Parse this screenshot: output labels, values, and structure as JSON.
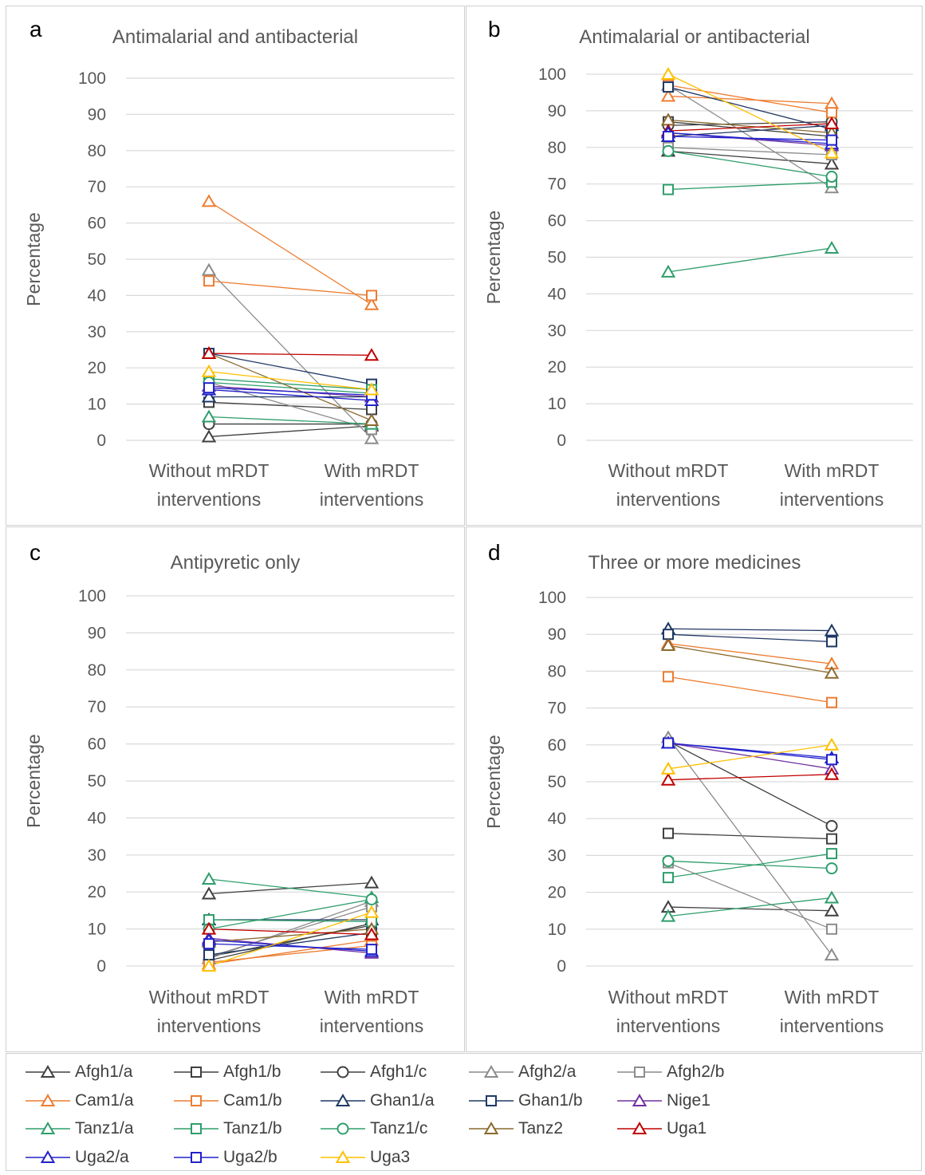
{
  "panels": [
    {
      "letter": "a",
      "title": "Antimalarial and antibacterial",
      "ylabel": "Percentage",
      "categories": [
        "Without mRDT\ninterventions",
        "With mRDT\ninterventions"
      ]
    },
    {
      "letter": "b",
      "title": "Antimalarial or antibacterial",
      "ylabel": "Percentage",
      "categories": [
        "Without mRDT\ninterventions",
        "With mRDT\ninterventions"
      ]
    },
    {
      "letter": "c",
      "title": "Antipyretic only",
      "ylabel": "Percentage",
      "categories": [
        "Without mRDT\ninterventions",
        "With mRDT\ninterventions"
      ]
    },
    {
      "letter": "d",
      "title": "Three or more medicines",
      "ylabel": "Percentage",
      "categories": [
        "Without mRDT\ninterventions",
        "With mRDT\ninterventions"
      ]
    }
  ],
  "series_styles": [
    {
      "name": "Afgh1/a",
      "color": "#404040",
      "marker": "triangle"
    },
    {
      "name": "Afgh1/b",
      "color": "#404040",
      "marker": "square"
    },
    {
      "name": "Afgh1/c",
      "color": "#404040",
      "marker": "circle"
    },
    {
      "name": "Afgh2/a",
      "color": "#8c8c8c",
      "marker": "triangle"
    },
    {
      "name": "Afgh2/b",
      "color": "#8c8c8c",
      "marker": "square"
    },
    {
      "name": "Cam1/a",
      "color": "#ed7d31",
      "marker": "triangle"
    },
    {
      "name": "Cam1/b",
      "color": "#ed7d31",
      "marker": "square"
    },
    {
      "name": "Ghan1/a",
      "color": "#1f3864",
      "marker": "triangle"
    },
    {
      "name": "Ghan1/b",
      "color": "#1f3864",
      "marker": "square"
    },
    {
      "name": "Nige1",
      "color": "#7030a0",
      "marker": "triangle"
    },
    {
      "name": "Tanz1/a",
      "color": "#2e9e6b",
      "marker": "triangle"
    },
    {
      "name": "Tanz1/b",
      "color": "#2e9e6b",
      "marker": "square"
    },
    {
      "name": "Tanz1/c",
      "color": "#2e9e6b",
      "marker": "circle"
    },
    {
      "name": "Tanz2",
      "color": "#8b6a2e",
      "marker": "triangle"
    },
    {
      "name": "Uga1",
      "color": "#c00000",
      "marker": "triangle"
    },
    {
      "name": "Uga2/a",
      "color": "#2222cc",
      "marker": "triangle"
    },
    {
      "name": "Uga2/b",
      "color": "#2222cc",
      "marker": "square"
    },
    {
      "name": "Uga3",
      "color": "#ffc000",
      "marker": "triangle"
    }
  ],
  "chart_data": [
    {
      "type": "line",
      "title": "Antimalarial and antibacterial",
      "ylabel": "Percentage",
      "categories": [
        "Without mRDT interventions",
        "With mRDT interventions"
      ],
      "ylim": [
        0,
        100
      ],
      "yticks": [
        0,
        10,
        20,
        30,
        40,
        50,
        60,
        70,
        80,
        90,
        100
      ],
      "grid": true,
      "series": [
        {
          "name": "Afgh1/a",
          "values": [
            1,
            4
          ]
        },
        {
          "name": "Afgh1/b",
          "values": [
            10.5,
            8.5
          ]
        },
        {
          "name": "Afgh1/c",
          "values": [
            4.5,
            4.5
          ]
        },
        {
          "name": "Afgh2/a",
          "values": [
            47,
            0.5
          ]
        },
        {
          "name": "Afgh2/b",
          "values": [
            16,
            3
          ]
        },
        {
          "name": "Cam1/a",
          "values": [
            66,
            37.5
          ]
        },
        {
          "name": "Cam1/b",
          "values": [
            44,
            40
          ]
        },
        {
          "name": "Ghan1/a",
          "values": [
            12,
            12
          ]
        },
        {
          "name": "Ghan1/b",
          "values": [
            24,
            15.5
          ]
        },
        {
          "name": "Nige1",
          "values": [
            15,
            12
          ]
        },
        {
          "name": "Tanz1/a",
          "values": [
            6.5,
            4.5
          ]
        },
        {
          "name": "Tanz1/b",
          "values": [
            17,
            14
          ]
        },
        {
          "name": "Tanz1/c",
          "values": [
            16,
            13
          ]
        },
        {
          "name": "Tanz2",
          "values": [
            24,
            5.5
          ]
        },
        {
          "name": "Uga1",
          "values": [
            24,
            23.5
          ]
        },
        {
          "name": "Uga2/a",
          "values": [
            14,
            11
          ]
        },
        {
          "name": "Uga2/b",
          "values": [
            14.5,
            12.5
          ]
        },
        {
          "name": "Uga3",
          "values": [
            19,
            14
          ]
        }
      ]
    },
    {
      "type": "line",
      "title": "Antimalarial or antibacterial",
      "ylabel": "Percentage",
      "categories": [
        "Without mRDT interventions",
        "With mRDT interventions"
      ],
      "ylim": [
        0,
        100
      ],
      "yticks": [
        0,
        10,
        20,
        30,
        40,
        50,
        60,
        70,
        80,
        90,
        100
      ],
      "grid": true,
      "series": [
        {
          "name": "Afgh1/a",
          "values": [
            79,
            75.5
          ]
        },
        {
          "name": "Afgh1/b",
          "values": [
            87,
            83
          ]
        },
        {
          "name": "Afgh1/c",
          "values": [
            86,
            87
          ]
        },
        {
          "name": "Afgh2/a",
          "values": [
            97,
            69
          ]
        },
        {
          "name": "Afgh2/b",
          "values": [
            80,
            78
          ]
        },
        {
          "name": "Cam1/a",
          "values": [
            94,
            92
          ]
        },
        {
          "name": "Cam1/b",
          "values": [
            97,
            89.5
          ]
        },
        {
          "name": "Ghan1/a",
          "values": [
            83,
            86
          ]
        },
        {
          "name": "Ghan1/b",
          "values": [
            96.5,
            85
          ]
        },
        {
          "name": "Nige1",
          "values": [
            84,
            80.5
          ]
        },
        {
          "name": "Tanz1/a",
          "values": [
            46,
            52.5
          ]
        },
        {
          "name": "Tanz1/b",
          "values": [
            68.5,
            70.5
          ]
        },
        {
          "name": "Tanz1/c",
          "values": [
            79,
            72
          ]
        },
        {
          "name": "Tanz2",
          "values": [
            87.5,
            84
          ]
        },
        {
          "name": "Uga1",
          "values": [
            84.5,
            86.5
          ]
        },
        {
          "name": "Uga2/a",
          "values": [
            84,
            81
          ]
        },
        {
          "name": "Uga2/b",
          "values": [
            83,
            82
          ]
        },
        {
          "name": "Uga3",
          "values": [
            100,
            78.5
          ]
        }
      ]
    },
    {
      "type": "line",
      "title": "Antipyretic only",
      "ylabel": "Percentage",
      "categories": [
        "Without mRDT interventions",
        "With mRDT interventions"
      ],
      "ylim": [
        0,
        100
      ],
      "yticks": [
        0,
        10,
        20,
        30,
        40,
        50,
        60,
        70,
        80,
        90,
        100
      ],
      "grid": true,
      "series": [
        {
          "name": "Afgh1/a",
          "values": [
            19.5,
            22.5
          ]
        },
        {
          "name": "Afgh1/b",
          "values": [
            2.5,
            11
          ]
        },
        {
          "name": "Afgh1/c",
          "values": [
            1.5,
            11.5
          ]
        },
        {
          "name": "Afgh2/a",
          "values": [
            2,
            17.5
          ]
        },
        {
          "name": "Afgh2/b",
          "values": [
            2.5,
            16
          ]
        },
        {
          "name": "Cam1/a",
          "values": [
            0.5,
            7
          ]
        },
        {
          "name": "Cam1/b",
          "values": [
            1,
            5.5
          ]
        },
        {
          "name": "Ghan1/a",
          "values": [
            12.5,
            12.5
          ]
        },
        {
          "name": "Ghan1/b",
          "values": [
            3,
            9
          ]
        },
        {
          "name": "Nige1",
          "values": [
            7.5,
            3.5
          ]
        },
        {
          "name": "Tanz1/a",
          "values": [
            23.5,
            18.5
          ]
        },
        {
          "name": "Tanz1/b",
          "values": [
            12.5,
            12
          ]
        },
        {
          "name": "Tanz1/c",
          "values": [
            10,
            18
          ]
        },
        {
          "name": "Tanz2",
          "values": [
            6.5,
            10
          ]
        },
        {
          "name": "Uga1",
          "values": [
            10,
            8.5
          ]
        },
        {
          "name": "Uga2/a",
          "values": [
            7,
            4
          ]
        },
        {
          "name": "Uga2/b",
          "values": [
            6,
            4.5
          ]
        },
        {
          "name": "Uga3",
          "values": [
            0,
            14.5
          ]
        }
      ]
    },
    {
      "type": "line",
      "title": "Three or more medicines",
      "ylabel": "Percentage",
      "categories": [
        "Without mRDT interventions",
        "With mRDT interventions"
      ],
      "ylim": [
        0,
        100
      ],
      "yticks": [
        0,
        10,
        20,
        30,
        40,
        50,
        60,
        70,
        80,
        90,
        100
      ],
      "grid": true,
      "series": [
        {
          "name": "Afgh1/a",
          "values": [
            16,
            15
          ]
        },
        {
          "name": "Afgh1/b",
          "values": [
            36,
            34.5
          ]
        },
        {
          "name": "Afgh1/c",
          "values": [
            61,
            38
          ]
        },
        {
          "name": "Afgh2/a",
          "values": [
            62,
            3
          ]
        },
        {
          "name": "Afgh2/b",
          "values": [
            28,
            10
          ]
        },
        {
          "name": "Cam1/a",
          "values": [
            87.5,
            82
          ]
        },
        {
          "name": "Cam1/b",
          "values": [
            78.5,
            71.5
          ]
        },
        {
          "name": "Ghan1/a",
          "values": [
            91.5,
            91
          ]
        },
        {
          "name": "Ghan1/b",
          "values": [
            90,
            88
          ]
        },
        {
          "name": "Nige1",
          "values": [
            60.5,
            53.5
          ]
        },
        {
          "name": "Tanz1/a",
          "values": [
            13.5,
            18.5
          ]
        },
        {
          "name": "Tanz1/b",
          "values": [
            24,
            30.5
          ]
        },
        {
          "name": "Tanz1/c",
          "values": [
            28.5,
            26.5
          ]
        },
        {
          "name": "Tanz2",
          "values": [
            87,
            79.5
          ]
        },
        {
          "name": "Uga1",
          "values": [
            50.5,
            52
          ]
        },
        {
          "name": "Uga2/a",
          "values": [
            60.5,
            56.5
          ]
        },
        {
          "name": "Uga2/b",
          "values": [
            60.5,
            56
          ]
        },
        {
          "name": "Uga3",
          "values": [
            53.5,
            60
          ]
        }
      ]
    }
  ]
}
